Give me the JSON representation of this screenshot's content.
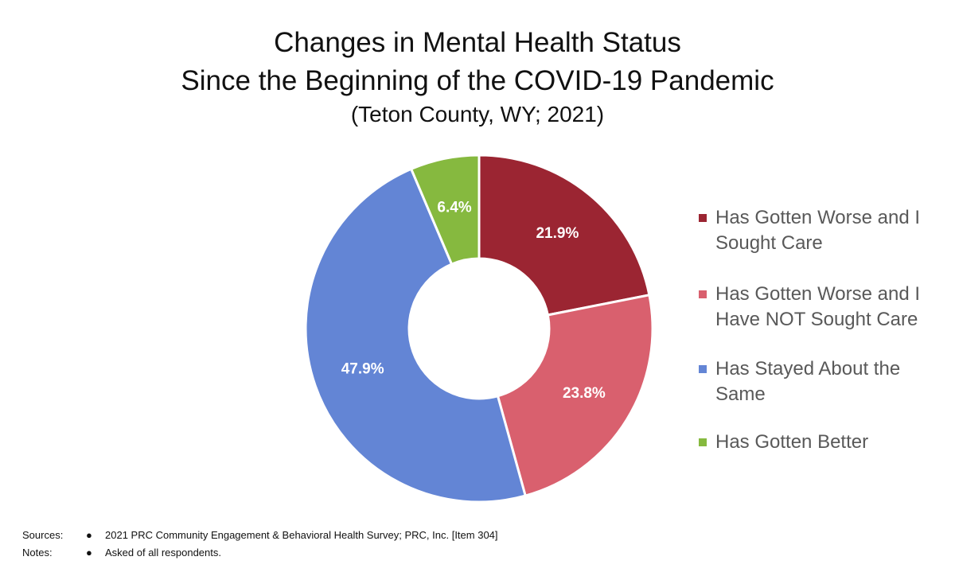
{
  "chart_data": {
    "type": "pie",
    "title": "Changes in Mental Health Status",
    "subtitle": "Since the Beginning of the COVID-19 Pandemic",
    "subtitle2": "(Teton County, WY; 2021)",
    "donut": true,
    "legend_position": "right",
    "slices": [
      {
        "label": "Has Gotten Worse and I Sought Care",
        "value": 21.9,
        "display": "21.9%",
        "color": "#9B2532"
      },
      {
        "label": "Has Gotten Worse and I Have NOT Sought Care",
        "value": 23.8,
        "display": "23.8%",
        "color": "#D9606E"
      },
      {
        "label": "Has Stayed About the Same",
        "value": 47.9,
        "display": "47.9%",
        "color": "#6385D5"
      },
      {
        "label": "Has Gotten Better",
        "value": 6.4,
        "display": "6.4%",
        "color": "#86B93F"
      }
    ],
    "legend": [
      {
        "lines": [
          "Has Gotten Worse and I",
          "Sought Care"
        ]
      },
      {
        "lines": [
          "Has Gotten Worse and I",
          "Have NOT Sought Care"
        ]
      },
      {
        "lines": [
          "Has Stayed About the",
          "Same"
        ]
      },
      {
        "lines": [
          "Has Gotten Better"
        ]
      }
    ]
  },
  "footnotes": {
    "sources_label": "Sources:",
    "sources_bullet": "●",
    "sources_text": "2021 PRC Community Engagement & Behavioral Health Survey; PRC, Inc. [Item 304]",
    "notes_label": "Notes:",
    "notes_bullet": "●",
    "notes_text": "Asked of all respondents."
  }
}
